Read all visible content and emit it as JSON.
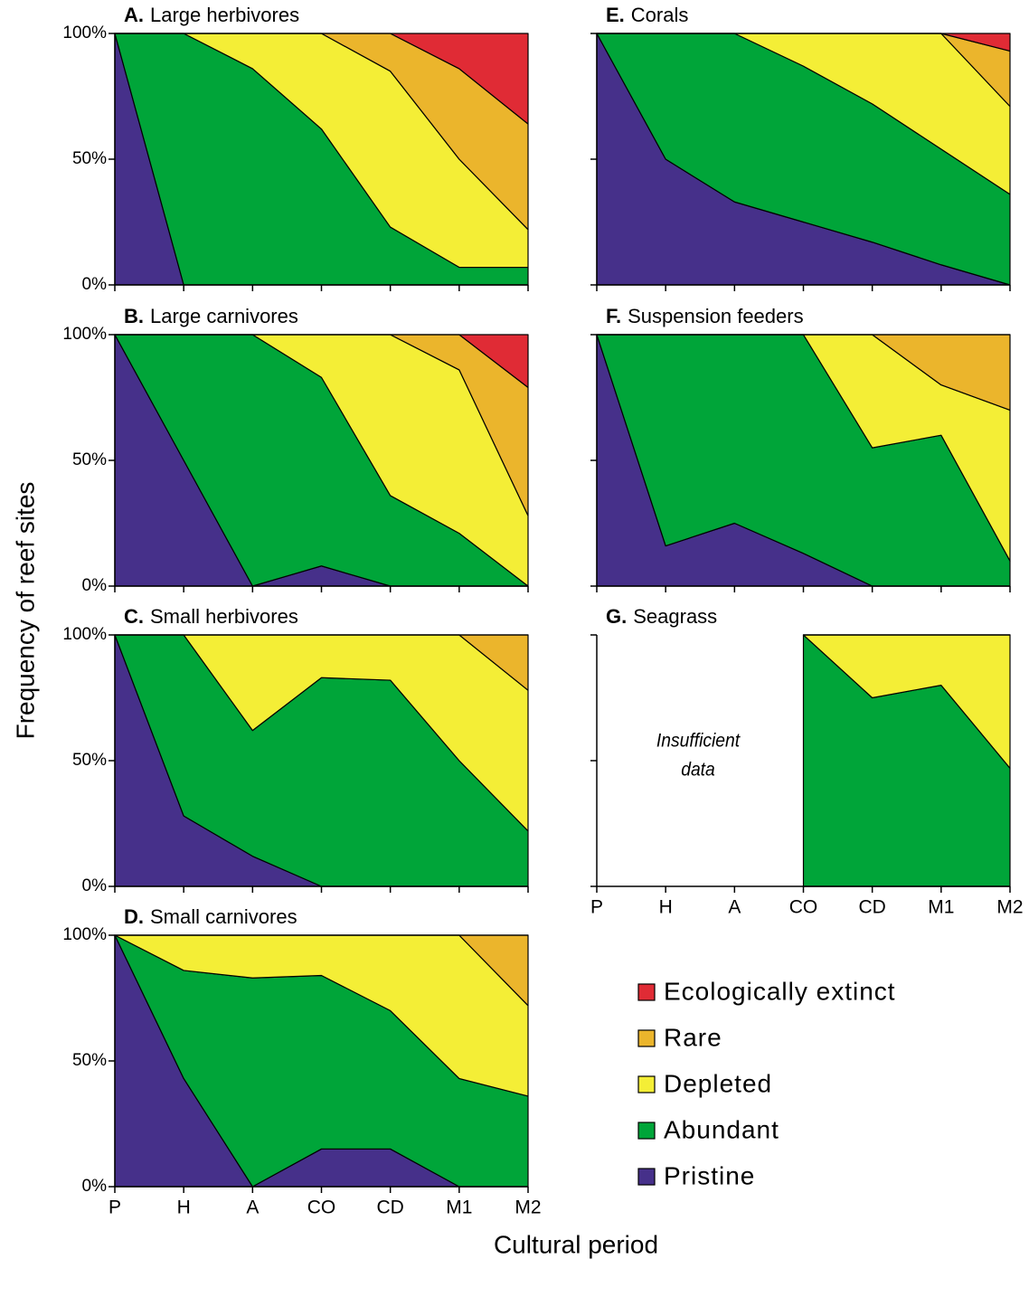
{
  "ylabel": "Frequency of reef sites",
  "xlabel": "Cultural period",
  "chart_data": [
    {
      "type": "stacked-area",
      "label": "A.",
      "title": "Large herbivores",
      "categories": [
        "P",
        "H",
        "A",
        "CO",
        "CD",
        "M1",
        "M2"
      ],
      "ylim": [
        0,
        100
      ],
      "yticks": [
        {
          "value": 0,
          "label": "0%"
        },
        {
          "value": 50,
          "label": "50%"
        },
        {
          "value": 100,
          "label": "100%"
        }
      ],
      "series": [
        {
          "name": "Pristine",
          "color": "#46308a",
          "values": [
            100,
            0,
            0,
            0,
            0,
            0,
            0
          ]
        },
        {
          "name": "Abundant",
          "color": "#00a539",
          "values": [
            0,
            100,
            86,
            62,
            23,
            7,
            7
          ]
        },
        {
          "name": "Depleted",
          "color": "#f4ee36",
          "values": [
            0,
            0,
            14,
            38,
            62,
            43,
            15
          ]
        },
        {
          "name": "Rare",
          "color": "#ebb52c",
          "values": [
            0,
            0,
            0,
            0,
            15,
            36,
            42
          ]
        },
        {
          "name": "Ecologically extinct",
          "color": "#e02b35",
          "values": [
            0,
            0,
            0,
            0,
            0,
            14,
            36
          ]
        }
      ]
    },
    {
      "type": "stacked-area",
      "label": "B.",
      "title": "Large carnivores",
      "categories": [
        "P",
        "H",
        "A",
        "CO",
        "CD",
        "M1",
        "M2"
      ],
      "ylim": [
        0,
        100
      ],
      "yticks": [
        {
          "value": 0,
          "label": "0%"
        },
        {
          "value": 50,
          "label": "50%"
        },
        {
          "value": 100,
          "label": "100%"
        }
      ],
      "series": [
        {
          "name": "Pristine",
          "color": "#46308a",
          "values": [
            100,
            50,
            0,
            8,
            0,
            0,
            0
          ]
        },
        {
          "name": "Abundant",
          "color": "#00a539",
          "values": [
            0,
            50,
            100,
            75,
            36,
            21,
            0
          ]
        },
        {
          "name": "Depleted",
          "color": "#f4ee36",
          "values": [
            0,
            0,
            0,
            17,
            64,
            65,
            28
          ]
        },
        {
          "name": "Rare",
          "color": "#ebb52c",
          "values": [
            0,
            0,
            0,
            0,
            0,
            14,
            51
          ]
        },
        {
          "name": "Ecologically extinct",
          "color": "#e02b35",
          "values": [
            0,
            0,
            0,
            0,
            0,
            0,
            21
          ]
        }
      ]
    },
    {
      "type": "stacked-area",
      "label": "C.",
      "title": "Small herbivores",
      "categories": [
        "P",
        "H",
        "A",
        "CO",
        "CD",
        "M1",
        "M2"
      ],
      "ylim": [
        0,
        100
      ],
      "yticks": [
        {
          "value": 0,
          "label": "0%"
        },
        {
          "value": 50,
          "label": "50%"
        },
        {
          "value": 100,
          "label": "100%"
        }
      ],
      "series": [
        {
          "name": "Pristine",
          "color": "#46308a",
          "values": [
            100,
            28,
            12,
            0,
            0,
            0,
            0
          ]
        },
        {
          "name": "Abundant",
          "color": "#00a539",
          "values": [
            0,
            72,
            50,
            83,
            82,
            50,
            22
          ]
        },
        {
          "name": "Depleted",
          "color": "#f4ee36",
          "values": [
            0,
            0,
            38,
            17,
            18,
            50,
            56
          ]
        },
        {
          "name": "Rare",
          "color": "#ebb52c",
          "values": [
            0,
            0,
            0,
            0,
            0,
            0,
            22
          ]
        },
        {
          "name": "Ecologically extinct",
          "color": "#e02b35",
          "values": [
            0,
            0,
            0,
            0,
            0,
            0,
            0
          ]
        }
      ]
    },
    {
      "type": "stacked-area",
      "label": "D.",
      "title": "Small carnivores",
      "categories": [
        "P",
        "H",
        "A",
        "CO",
        "CD",
        "M1",
        "M2"
      ],
      "ylim": [
        0,
        100
      ],
      "yticks": [
        {
          "value": 0,
          "label": "0%"
        },
        {
          "value": 50,
          "label": "50%"
        },
        {
          "value": 100,
          "label": "100%"
        }
      ],
      "series": [
        {
          "name": "Pristine",
          "color": "#46308a",
          "values": [
            100,
            43,
            0,
            15,
            15,
            0,
            0
          ]
        },
        {
          "name": "Abundant",
          "color": "#00a539",
          "values": [
            0,
            43,
            83,
            69,
            55,
            43,
            36
          ]
        },
        {
          "name": "Depleted",
          "color": "#f4ee36",
          "values": [
            0,
            14,
            17,
            16,
            30,
            57,
            36
          ]
        },
        {
          "name": "Rare",
          "color": "#ebb52c",
          "values": [
            0,
            0,
            0,
            0,
            0,
            0,
            28
          ]
        },
        {
          "name": "Ecologically extinct",
          "color": "#e02b35",
          "values": [
            0,
            0,
            0,
            0,
            0,
            0,
            0
          ]
        }
      ]
    },
    {
      "type": "stacked-area",
      "label": "E.",
      "title": "Corals",
      "categories": [
        "P",
        "H",
        "A",
        "CO",
        "CD",
        "M1",
        "M2"
      ],
      "ylim": [
        0,
        100
      ],
      "yticks": [
        {
          "value": 0,
          "label": "0%"
        },
        {
          "value": 50,
          "label": "50%"
        },
        {
          "value": 100,
          "label": "100%"
        }
      ],
      "series": [
        {
          "name": "Pristine",
          "color": "#46308a",
          "values": [
            100,
            50,
            33,
            25,
            17,
            8,
            0
          ]
        },
        {
          "name": "Abundant",
          "color": "#00a539",
          "values": [
            0,
            50,
            67,
            62,
            55,
            46,
            36
          ]
        },
        {
          "name": "Depleted",
          "color": "#f4ee36",
          "values": [
            0,
            0,
            0,
            13,
            28,
            46,
            35
          ]
        },
        {
          "name": "Rare",
          "color": "#ebb52c",
          "values": [
            0,
            0,
            0,
            0,
            0,
            0,
            22
          ]
        },
        {
          "name": "Ecologically extinct",
          "color": "#e02b35",
          "values": [
            0,
            0,
            0,
            0,
            0,
            0,
            7
          ]
        }
      ]
    },
    {
      "type": "stacked-area",
      "label": "F.",
      "title": "Suspension feeders",
      "categories": [
        "P",
        "H",
        "A",
        "CO",
        "CD",
        "M1",
        "M2"
      ],
      "ylim": [
        0,
        100
      ],
      "yticks": [
        {
          "value": 0,
          "label": "0%"
        },
        {
          "value": 50,
          "label": "50%"
        },
        {
          "value": 100,
          "label": "100%"
        }
      ],
      "series": [
        {
          "name": "Pristine",
          "color": "#46308a",
          "values": [
            100,
            16,
            25,
            13,
            0,
            0,
            0
          ]
        },
        {
          "name": "Abundant",
          "color": "#00a539",
          "values": [
            0,
            84,
            75,
            87,
            55,
            60,
            10
          ]
        },
        {
          "name": "Depleted",
          "color": "#f4ee36",
          "values": [
            0,
            0,
            0,
            0,
            45,
            20,
            60
          ]
        },
        {
          "name": "Rare",
          "color": "#ebb52c",
          "values": [
            0,
            0,
            0,
            0,
            0,
            20,
            30
          ]
        },
        {
          "name": "Ecologically extinct",
          "color": "#e02b35",
          "values": [
            0,
            0,
            0,
            0,
            0,
            0,
            0
          ]
        }
      ]
    },
    {
      "type": "stacked-area",
      "label": "G.",
      "title": "Seagrass",
      "annotation": [
        "Insufficient",
        "data"
      ],
      "categories": [
        "P",
        "H",
        "A",
        "CO",
        "CD",
        "M1",
        "M2"
      ],
      "ylim": [
        0,
        100
      ],
      "yticks": [
        {
          "value": 0,
          "label": "0%"
        },
        {
          "value": 50,
          "label": "50%"
        },
        {
          "value": 100,
          "label": "100%"
        }
      ],
      "series": [
        {
          "name": "Pristine",
          "color": "#46308a",
          "values": [
            null,
            null,
            null,
            0,
            0,
            0,
            0
          ]
        },
        {
          "name": "Abundant",
          "color": "#00a539",
          "values": [
            null,
            null,
            null,
            100,
            75,
            80,
            47
          ]
        },
        {
          "name": "Depleted",
          "color": "#f4ee36",
          "values": [
            null,
            null,
            null,
            0,
            25,
            20,
            53
          ]
        },
        {
          "name": "Rare",
          "color": "#ebb52c",
          "values": [
            null,
            null,
            null,
            0,
            0,
            0,
            0
          ]
        },
        {
          "name": "Ecologically extinct",
          "color": "#e02b35",
          "values": [
            null,
            null,
            null,
            0,
            0,
            0,
            0
          ]
        }
      ]
    }
  ]
}
